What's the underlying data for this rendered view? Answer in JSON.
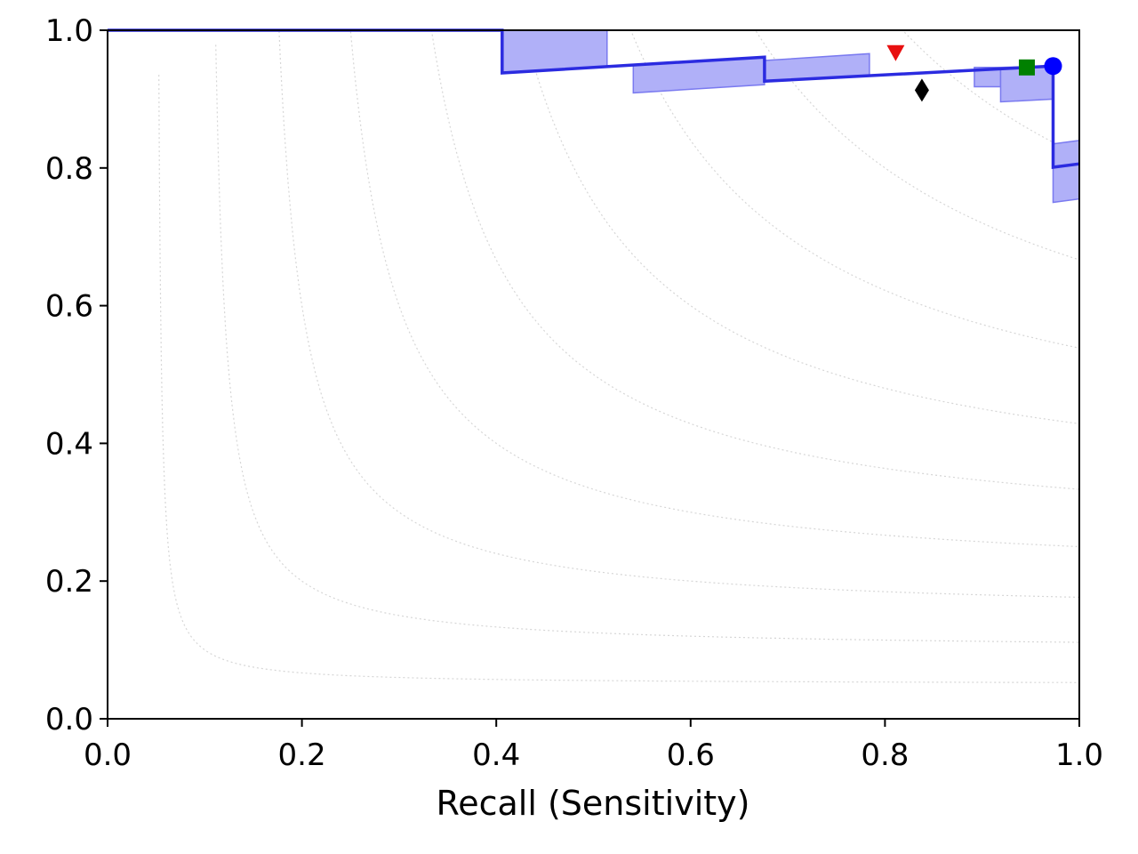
{
  "chart_data": {
    "type": "line",
    "title": "",
    "xlabel": "Recall (Sensitivity)",
    "ylabel": "",
    "xlim": [
      0,
      1
    ],
    "ylim": [
      0,
      1
    ],
    "xticks": [
      "0.0",
      "0.2",
      "0.4",
      "0.6",
      "0.8",
      "1.0"
    ],
    "yticks": [
      "0.0",
      "0.2",
      "0.4",
      "0.6",
      "0.8",
      "1.0"
    ],
    "grid": "iso-F1 dotted contours",
    "legend": "none",
    "colors": {
      "curve": "#2b2be0",
      "band_fill": "#b0b0f8",
      "band_edge": "#7a7af0",
      "contour": "#d6d6d6",
      "marker_triangle": "#e81010",
      "marker_diamond": "#000000",
      "marker_square": "#008000",
      "marker_circle": "#0000ff"
    },
    "iso_f1_levels": [
      0.1,
      0.2,
      0.3,
      0.4,
      0.5,
      0.6,
      0.7,
      0.8,
      0.9
    ],
    "series": [
      {
        "points": [
          [
            0.0,
            1.0
          ],
          [
            0.406,
            1.0
          ],
          [
            0.406,
            0.938
          ],
          [
            0.676,
            0.961
          ],
          [
            0.676,
            0.926
          ],
          [
            0.973,
            0.948
          ],
          [
            0.973,
            0.801
          ],
          [
            1.0,
            0.806
          ]
        ]
      }
    ],
    "bands": [
      {
        "x": [
          0.406,
          0.514
        ],
        "ylow": [
          0.938,
          0.947
        ],
        "yhigh": [
          1.0,
          1.0
        ]
      },
      {
        "x": [
          0.541,
          0.676
        ],
        "ylow": [
          0.909,
          0.921
        ],
        "yhigh": [
          0.949,
          0.961
        ]
      },
      {
        "x": [
          0.676,
          0.784
        ],
        "ylow": [
          0.926,
          0.934
        ],
        "yhigh": [
          0.956,
          0.966
        ]
      },
      {
        "x": [
          0.892,
          0.919
        ],
        "ylow": [
          0.918,
          0.918
        ],
        "yhigh": [
          0.946,
          0.946
        ]
      },
      {
        "x": [
          0.919,
          0.973
        ],
        "ylow": [
          0.896,
          0.9
        ],
        "yhigh": [
          0.946,
          0.948
        ]
      },
      {
        "x": [
          0.973,
          1.0
        ],
        "ylow": [
          0.75,
          0.755
        ],
        "yhigh": [
          0.835,
          0.84
        ]
      }
    ],
    "markers": [
      {
        "shape": "triangle-down",
        "x": 0.811,
        "y": 0.968
      },
      {
        "shape": "diamond",
        "x": 0.838,
        "y": 0.913
      },
      {
        "shape": "square",
        "x": 0.946,
        "y": 0.946
      },
      {
        "shape": "circle",
        "x": 0.973,
        "y": 0.948
      }
    ]
  }
}
